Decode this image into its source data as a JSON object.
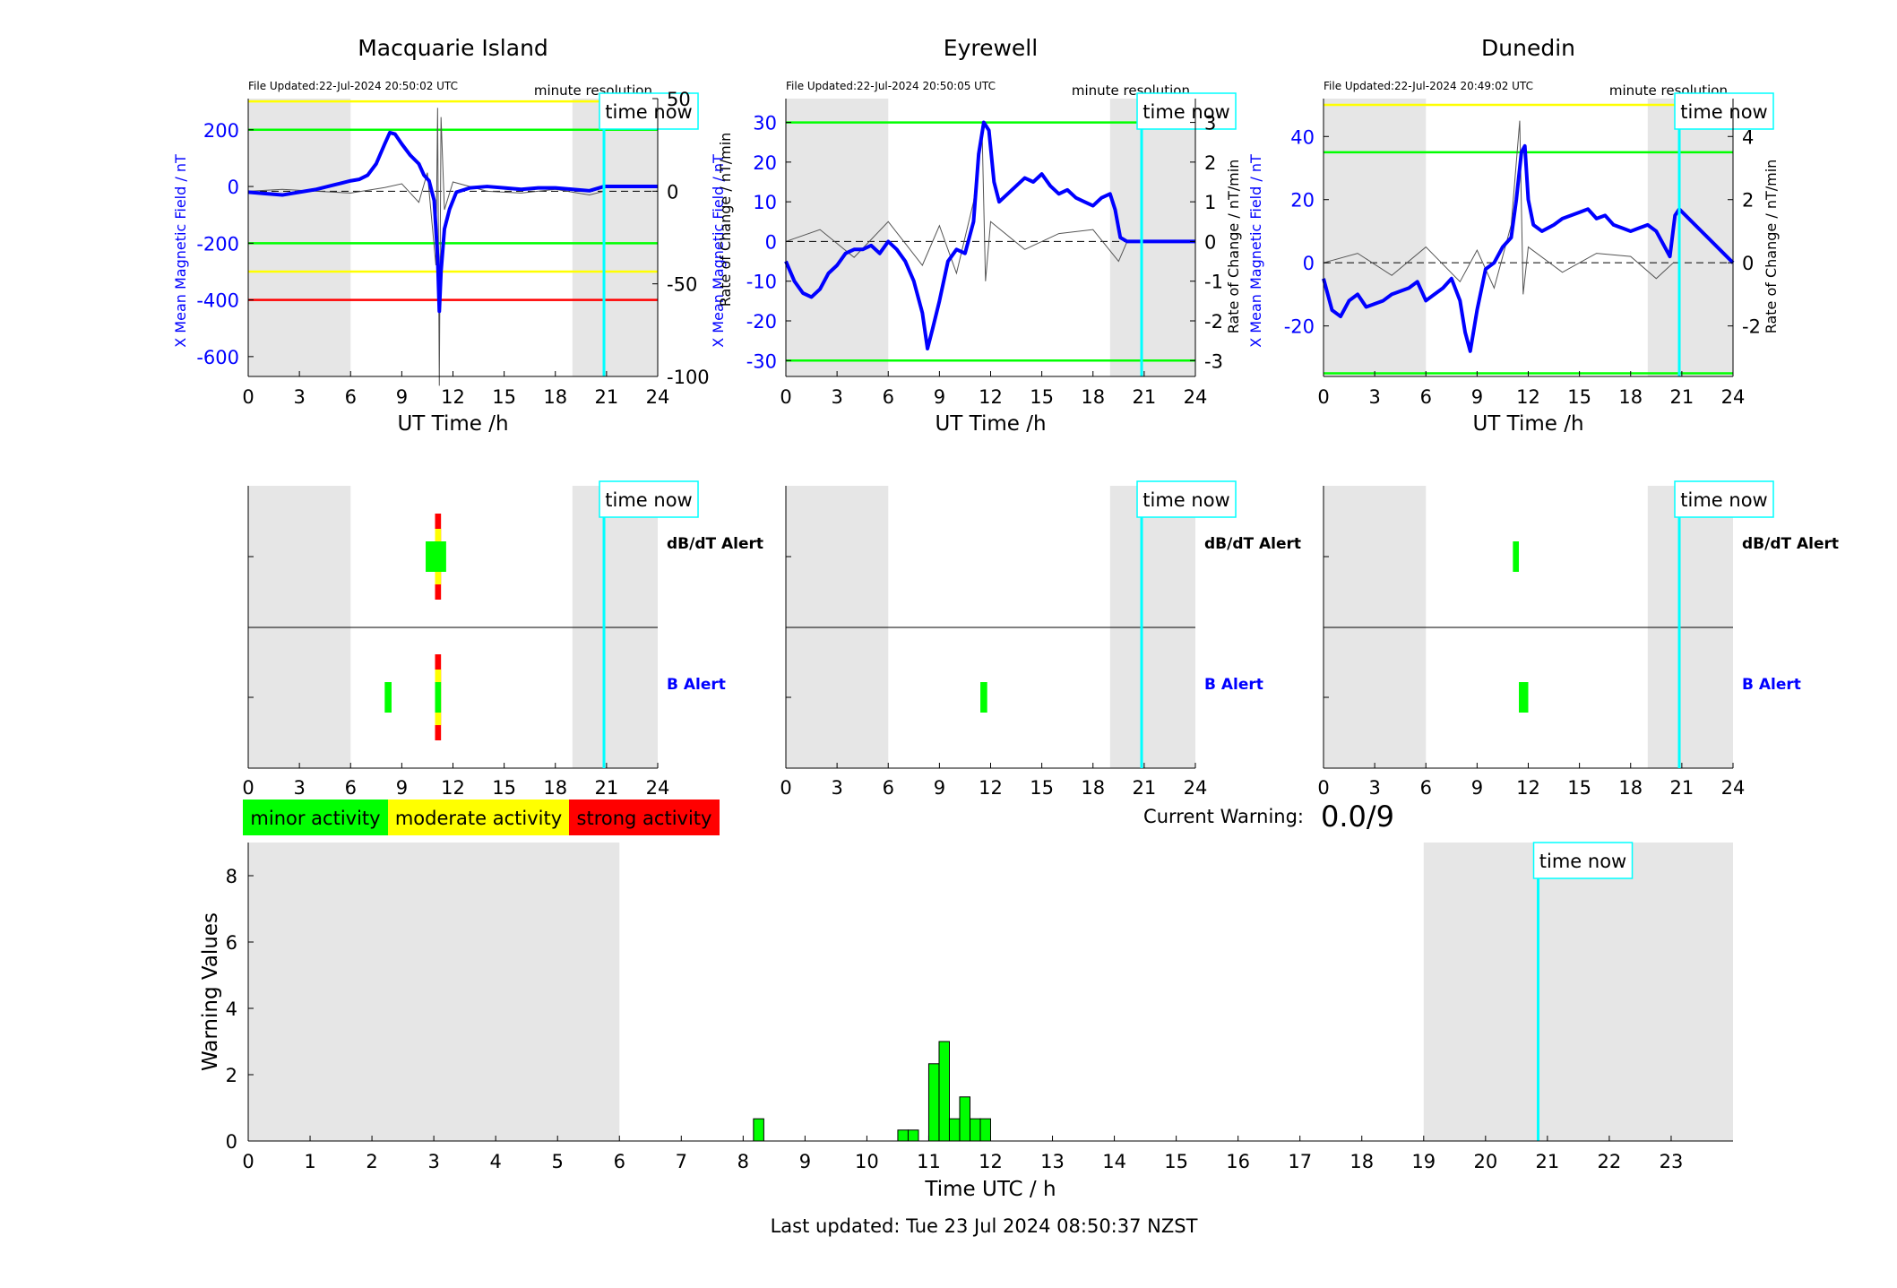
{
  "figure": {
    "last_updated": "Last updated: Tue 23 Jul 2024 08:50:37 NZST",
    "current_warning_label": "Current Warning:",
    "current_warning_value": "0.0/9",
    "time_now_label": "time now",
    "minute_resolution_label": "minute resolution",
    "legend": {
      "minor": "minor activity",
      "moderate": "moderate activity",
      "strong": "strong activity"
    },
    "colors": {
      "mean_field": "#0000ff",
      "rate": "#000000",
      "minor": "#00ff00",
      "moderate": "#ffff00",
      "strong": "#ff0000",
      "time_now": "#00ffff",
      "night_shade": "#e6e6e6"
    }
  },
  "chart_data": [
    {
      "type": "line",
      "station": "Macquarie Island",
      "title": "Macquarie Island",
      "file_updated": "File Updated:22-Jul-2024 20:50:02 UTC",
      "xlabel": "UT Time /h",
      "ylabel_left": "X Mean Magnetic Field / nT",
      "ylabel_right": "",
      "xlim": [
        0,
        24
      ],
      "ylim_left": [
        -670,
        310
      ],
      "ylim_right": [
        -100,
        50
      ],
      "xticks": [
        0,
        3,
        6,
        9,
        12,
        15,
        18,
        21,
        24
      ],
      "yticks_left": [
        -600,
        -400,
        -200,
        0,
        200
      ],
      "yticks_right": [
        -100,
        -50,
        0,
        50
      ],
      "night_shading": [
        [
          0,
          6
        ],
        [
          19,
          24
        ]
      ],
      "time_now": 20.85,
      "threshold_lines": [
        {
          "value": 300,
          "color": "yellow"
        },
        {
          "value": 200,
          "color": "green"
        },
        {
          "value": -200,
          "color": "green"
        },
        {
          "value": -300,
          "color": "yellow"
        },
        {
          "value": -400,
          "color": "red"
        }
      ],
      "mean_field_series": {
        "x": [
          0,
          1,
          2,
          3,
          4,
          5,
          6,
          6.5,
          7,
          7.5,
          8,
          8.3,
          8.6,
          9,
          9.5,
          10,
          10.3,
          10.6,
          10.9,
          11.1,
          11.2,
          11.3,
          11.5,
          11.8,
          12.2,
          13,
          14,
          15,
          16,
          17,
          18,
          19,
          20,
          20.85,
          24
        ],
        "y": [
          -20,
          -25,
          -30,
          -20,
          -10,
          5,
          20,
          25,
          40,
          80,
          150,
          190,
          185,
          150,
          110,
          80,
          40,
          20,
          -50,
          -250,
          -440,
          -300,
          -150,
          -80,
          -20,
          -5,
          0,
          -5,
          -10,
          -5,
          -5,
          -10,
          -15,
          0,
          0
        ]
      },
      "rate_series": {
        "x": [
          0,
          2,
          4,
          6,
          8,
          9,
          10,
          10.5,
          11,
          11.1,
          11.2,
          11.3,
          11.5,
          12,
          14,
          16,
          18,
          20,
          20.85
        ],
        "y": [
          0,
          1,
          0,
          -1,
          2,
          4,
          -6,
          10,
          -40,
          45,
          -105,
          40,
          -10,
          5,
          0,
          -1,
          1,
          -2,
          0
        ]
      },
      "alerts": {
        "dBdT": [
          {
            "start": 10.4,
            "end": 11.6,
            "level": "minor"
          },
          {
            "start": 10.95,
            "end": 11.3,
            "level": "moderate"
          },
          {
            "start": 10.95,
            "end": 11.3,
            "level": "strong"
          }
        ],
        "B": [
          {
            "start": 8.0,
            "end": 8.4,
            "level": "minor"
          },
          {
            "start": 10.95,
            "end": 11.3,
            "level": "minor"
          },
          {
            "start": 10.95,
            "end": 11.3,
            "level": "moderate"
          },
          {
            "start": 10.95,
            "end": 11.3,
            "level": "strong"
          }
        ]
      },
      "alert_labels": {
        "dBdT": "dB/dT Alert",
        "B": "B Alert"
      }
    },
    {
      "type": "line",
      "station": "Eyrewell",
      "title": "Eyrewell",
      "file_updated": "File Updated:22-Jul-2024 20:50:05 UTC",
      "xlabel": "UT Time /h",
      "ylabel_left": "X Mean Magnetic Field / nT",
      "ylabel_right": "Rate of Change / nT/min",
      "ylabel_right_overlap": "Rate of Change / nT/min",
      "xlim": [
        0,
        24
      ],
      "ylim_left": [
        -34,
        36
      ],
      "ylim_right": [
        -3.4,
        3.6
      ],
      "xticks": [
        0,
        3,
        6,
        9,
        12,
        15,
        18,
        21,
        24
      ],
      "yticks_left": [
        -30,
        -20,
        -10,
        0,
        10,
        20,
        30
      ],
      "yticks_right": [
        -3,
        -2,
        -1,
        0,
        1,
        2,
        3
      ],
      "night_shading": [
        [
          0,
          6
        ],
        [
          19,
          24
        ]
      ],
      "time_now": 20.85,
      "threshold_lines": [
        {
          "value": 30,
          "color": "green"
        },
        {
          "value": -30,
          "color": "green"
        }
      ],
      "mean_field_series": {
        "x": [
          0,
          0.5,
          1,
          1.5,
          2,
          2.5,
          3,
          3.5,
          4,
          4.5,
          5,
          5.5,
          6,
          6.5,
          7,
          7.5,
          8,
          8.3,
          8.6,
          9,
          9.5,
          10,
          10.5,
          11,
          11.3,
          11.6,
          11.9,
          12.2,
          12.5,
          13,
          13.5,
          14,
          14.5,
          15,
          15.5,
          16,
          16.5,
          17,
          17.5,
          18,
          18.5,
          19,
          19.3,
          19.6,
          20,
          20.85,
          24
        ],
        "y": [
          -5,
          -10,
          -13,
          -14,
          -12,
          -8,
          -6,
          -3,
          -2,
          -2,
          -1,
          -3,
          0,
          -2,
          -5,
          -10,
          -18,
          -27,
          -22,
          -15,
          -5,
          -2,
          -3,
          5,
          22,
          30,
          28,
          15,
          10,
          12,
          14,
          16,
          15,
          17,
          14,
          12,
          13,
          11,
          10,
          9,
          11,
          12,
          8,
          1,
          0,
          0,
          0
        ]
      },
      "rate_series": {
        "x": [
          0,
          2,
          4,
          6,
          8,
          9,
          10,
          11,
          11.5,
          11.7,
          12,
          14,
          16,
          18,
          19.5,
          20
        ],
        "y": [
          0,
          0.3,
          -0.4,
          0.5,
          -0.6,
          0.4,
          -0.8,
          1.0,
          2.8,
          -1.0,
          0.5,
          -0.2,
          0.2,
          0.3,
          -0.5,
          0
        ]
      },
      "alerts": {
        "dBdT": [],
        "B": [
          {
            "start": 11.4,
            "end": 11.8,
            "level": "minor"
          }
        ]
      },
      "alert_labels": {
        "dBdT": "dB/dT Alert",
        "B": "B Alert"
      }
    },
    {
      "type": "line",
      "station": "Dunedin",
      "title": "Dunedin",
      "file_updated": "File Updated:22-Jul-2024 20:49:02 UTC",
      "xlabel": "UT Time /h",
      "ylabel_left": "X Mean Magnetic Field / nT",
      "ylabel_right": "Rate of Change / nT/min",
      "xlim": [
        0,
        24
      ],
      "ylim_left": [
        -36,
        52
      ],
      "ylim_right": [
        -3.6,
        5.2
      ],
      "xticks": [
        0,
        3,
        6,
        9,
        12,
        15,
        18,
        21,
        24
      ],
      "yticks_left": [
        -20,
        0,
        20,
        40
      ],
      "yticks_right": [
        -2,
        0,
        2,
        4
      ],
      "night_shading": [
        [
          0,
          6
        ],
        [
          19,
          24
        ]
      ],
      "time_now": 20.85,
      "threshold_lines": [
        {
          "value": 50,
          "color": "yellow"
        },
        {
          "value": 35,
          "color": "green"
        },
        {
          "value": -35,
          "color": "green"
        }
      ],
      "mean_field_series": {
        "x": [
          0,
          0.5,
          1,
          1.5,
          2,
          2.5,
          3,
          3.5,
          4,
          4.5,
          5,
          5.5,
          6,
          6.5,
          7,
          7.5,
          8,
          8.3,
          8.6,
          9,
          9.5,
          10,
          10.5,
          11,
          11.3,
          11.6,
          11.8,
          12,
          12.3,
          12.8,
          13.5,
          14,
          14.5,
          15,
          15.5,
          16,
          16.5,
          17,
          17.5,
          18,
          18.5,
          19,
          19.5,
          20,
          20.3,
          20.6,
          20.85,
          24
        ],
        "y": [
          -5,
          -15,
          -17,
          -12,
          -10,
          -14,
          -13,
          -12,
          -10,
          -9,
          -8,
          -6,
          -12,
          -10,
          -8,
          -5,
          -12,
          -22,
          -28,
          -15,
          -2,
          0,
          5,
          8,
          20,
          35,
          37,
          20,
          12,
          10,
          12,
          14,
          15,
          16,
          17,
          14,
          15,
          12,
          11,
          10,
          11,
          12,
          10,
          5,
          2,
          15,
          17,
          0
        ]
      },
      "rate_series": {
        "x": [
          0,
          2,
          4,
          6,
          8,
          9,
          10,
          11,
          11.5,
          11.7,
          12,
          14,
          16,
          18,
          19.5,
          20.5
        ],
        "y": [
          0,
          0.3,
          -0.4,
          0.5,
          -0.6,
          0.4,
          -0.8,
          1.2,
          4.5,
          -1.0,
          0.5,
          -0.3,
          0.3,
          0.2,
          -0.5,
          0
        ]
      },
      "alerts": {
        "dBdT": [
          {
            "start": 11.1,
            "end": 11.45,
            "level": "minor"
          }
        ],
        "B": [
          {
            "start": 11.45,
            "end": 12.0,
            "level": "minor"
          }
        ]
      },
      "alert_labels": {
        "dBdT": "dB/dT Alert",
        "B": "B Alert"
      }
    },
    {
      "type": "bar",
      "title": "",
      "xlabel": "Time UTC / h",
      "ylabel": "Warning Values",
      "xlim": [
        0,
        24
      ],
      "ylim": [
        0,
        9
      ],
      "xticks": [
        0,
        1,
        2,
        3,
        4,
        5,
        6,
        7,
        8,
        9,
        10,
        11,
        12,
        13,
        14,
        15,
        16,
        17,
        18,
        19,
        20,
        21,
        22,
        23
      ],
      "yticks": [
        0,
        2,
        4,
        6,
        8
      ],
      "night_shading": [
        [
          0,
          6
        ],
        [
          19,
          24
        ]
      ],
      "time_now": 20.85,
      "bar_width": 0.1667,
      "bars": {
        "x": [
          8.167,
          10.5,
          10.667,
          11.0,
          11.167,
          11.333,
          11.5,
          11.667,
          11.833
        ],
        "values": [
          0.67,
          0.33,
          0.33,
          2.33,
          3.0,
          0.67,
          1.33,
          0.67,
          0.67
        ]
      }
    }
  ]
}
